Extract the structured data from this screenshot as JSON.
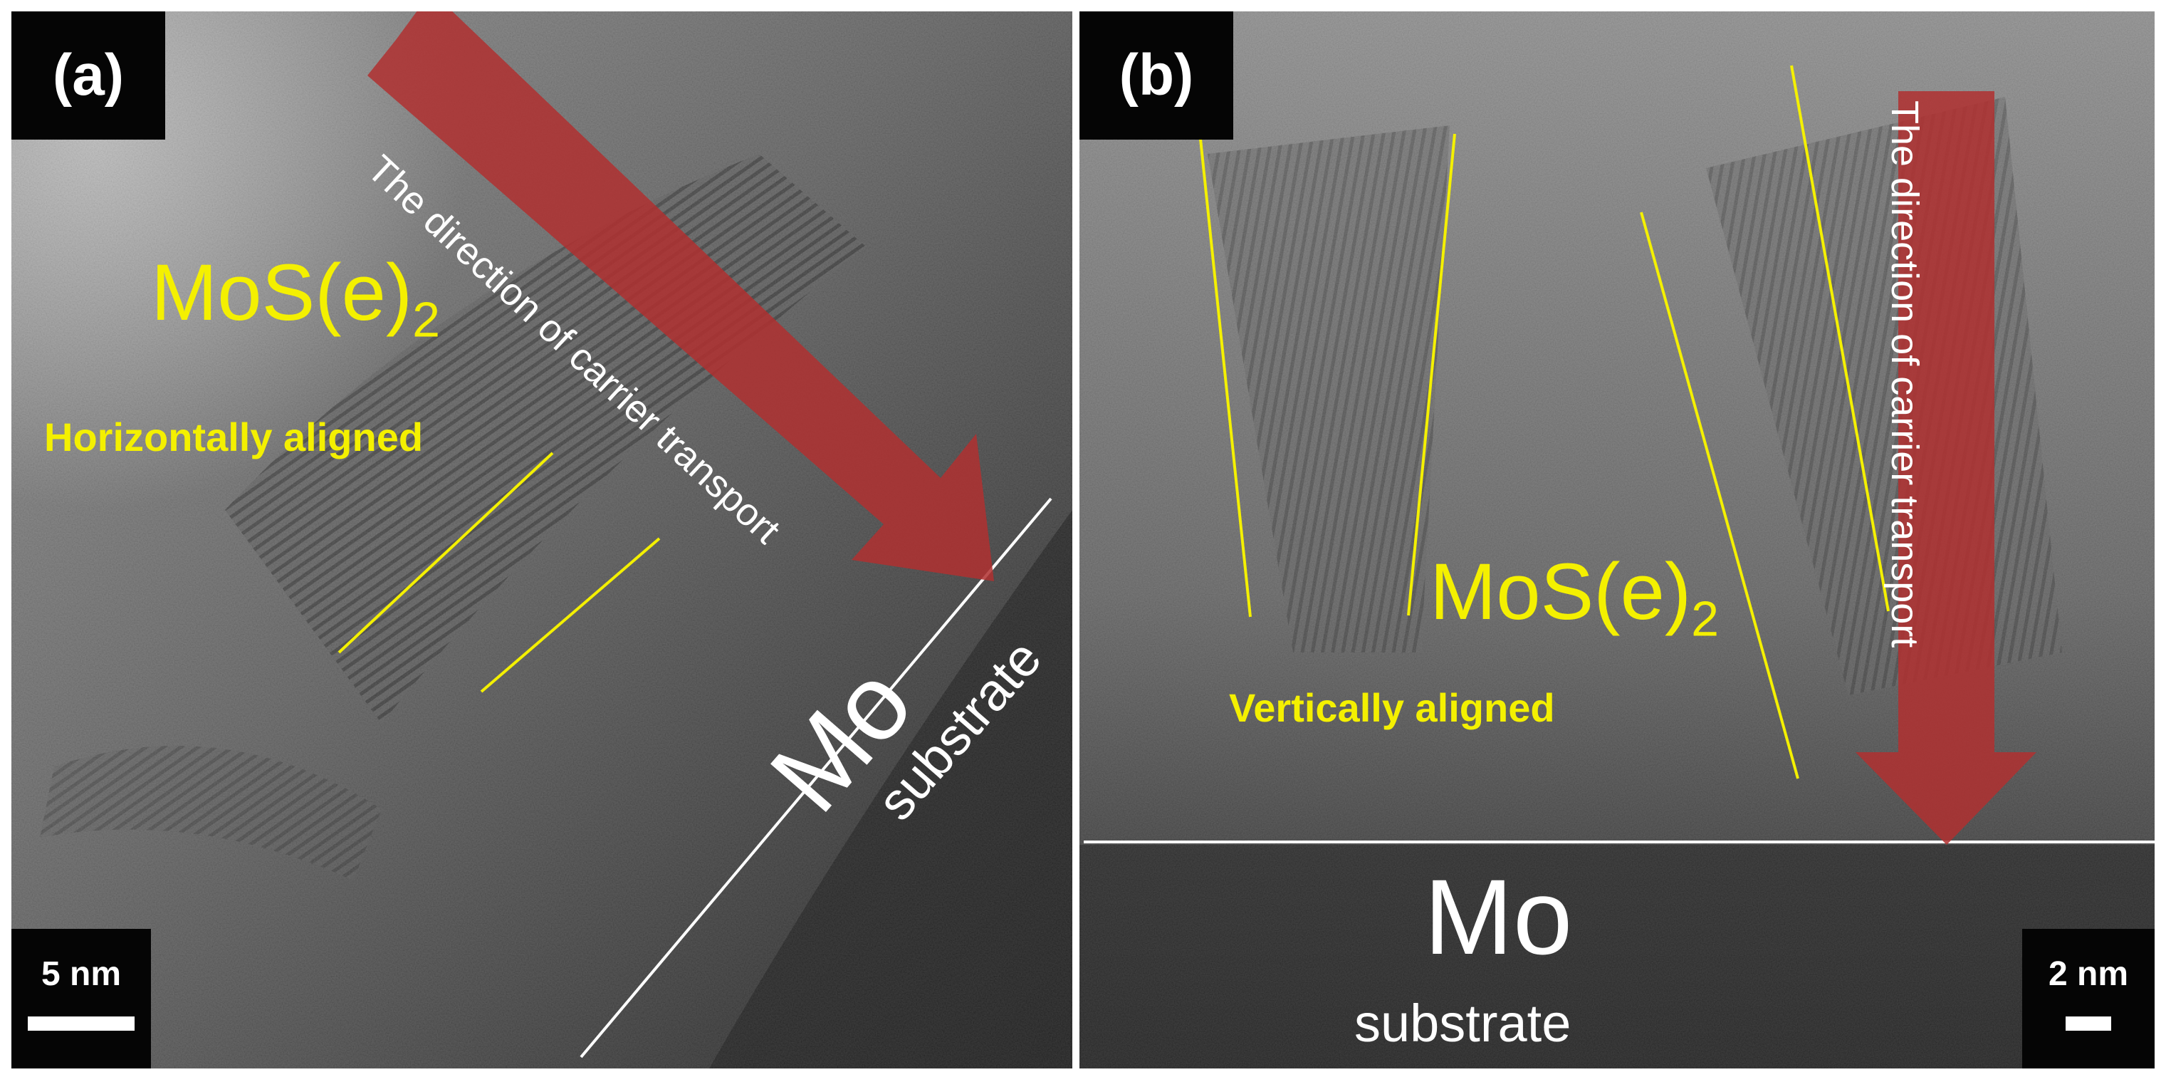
{
  "panel_a": {
    "label": "(a)",
    "material": "MoS(e)",
    "material_sub": "2",
    "alignment": "Horizontally aligned",
    "arrow_text": "The direction of carrier transport",
    "substrate_main": "Mo",
    "substrate_sub": "substrate",
    "scale": "5 nm"
  },
  "panel_b": {
    "label": "(b)",
    "material": "MoS(e)",
    "material_sub": "2",
    "alignment": "Vertically aligned",
    "arrow_text": "The direction of carrier transport",
    "substrate_main": "Mo",
    "substrate_sub": "substrate",
    "scale": "2 nm"
  },
  "colors": {
    "annotation_yellow": "#f4f000",
    "arrow_red": "#b03030",
    "background_gray": "#4a4a4a"
  }
}
